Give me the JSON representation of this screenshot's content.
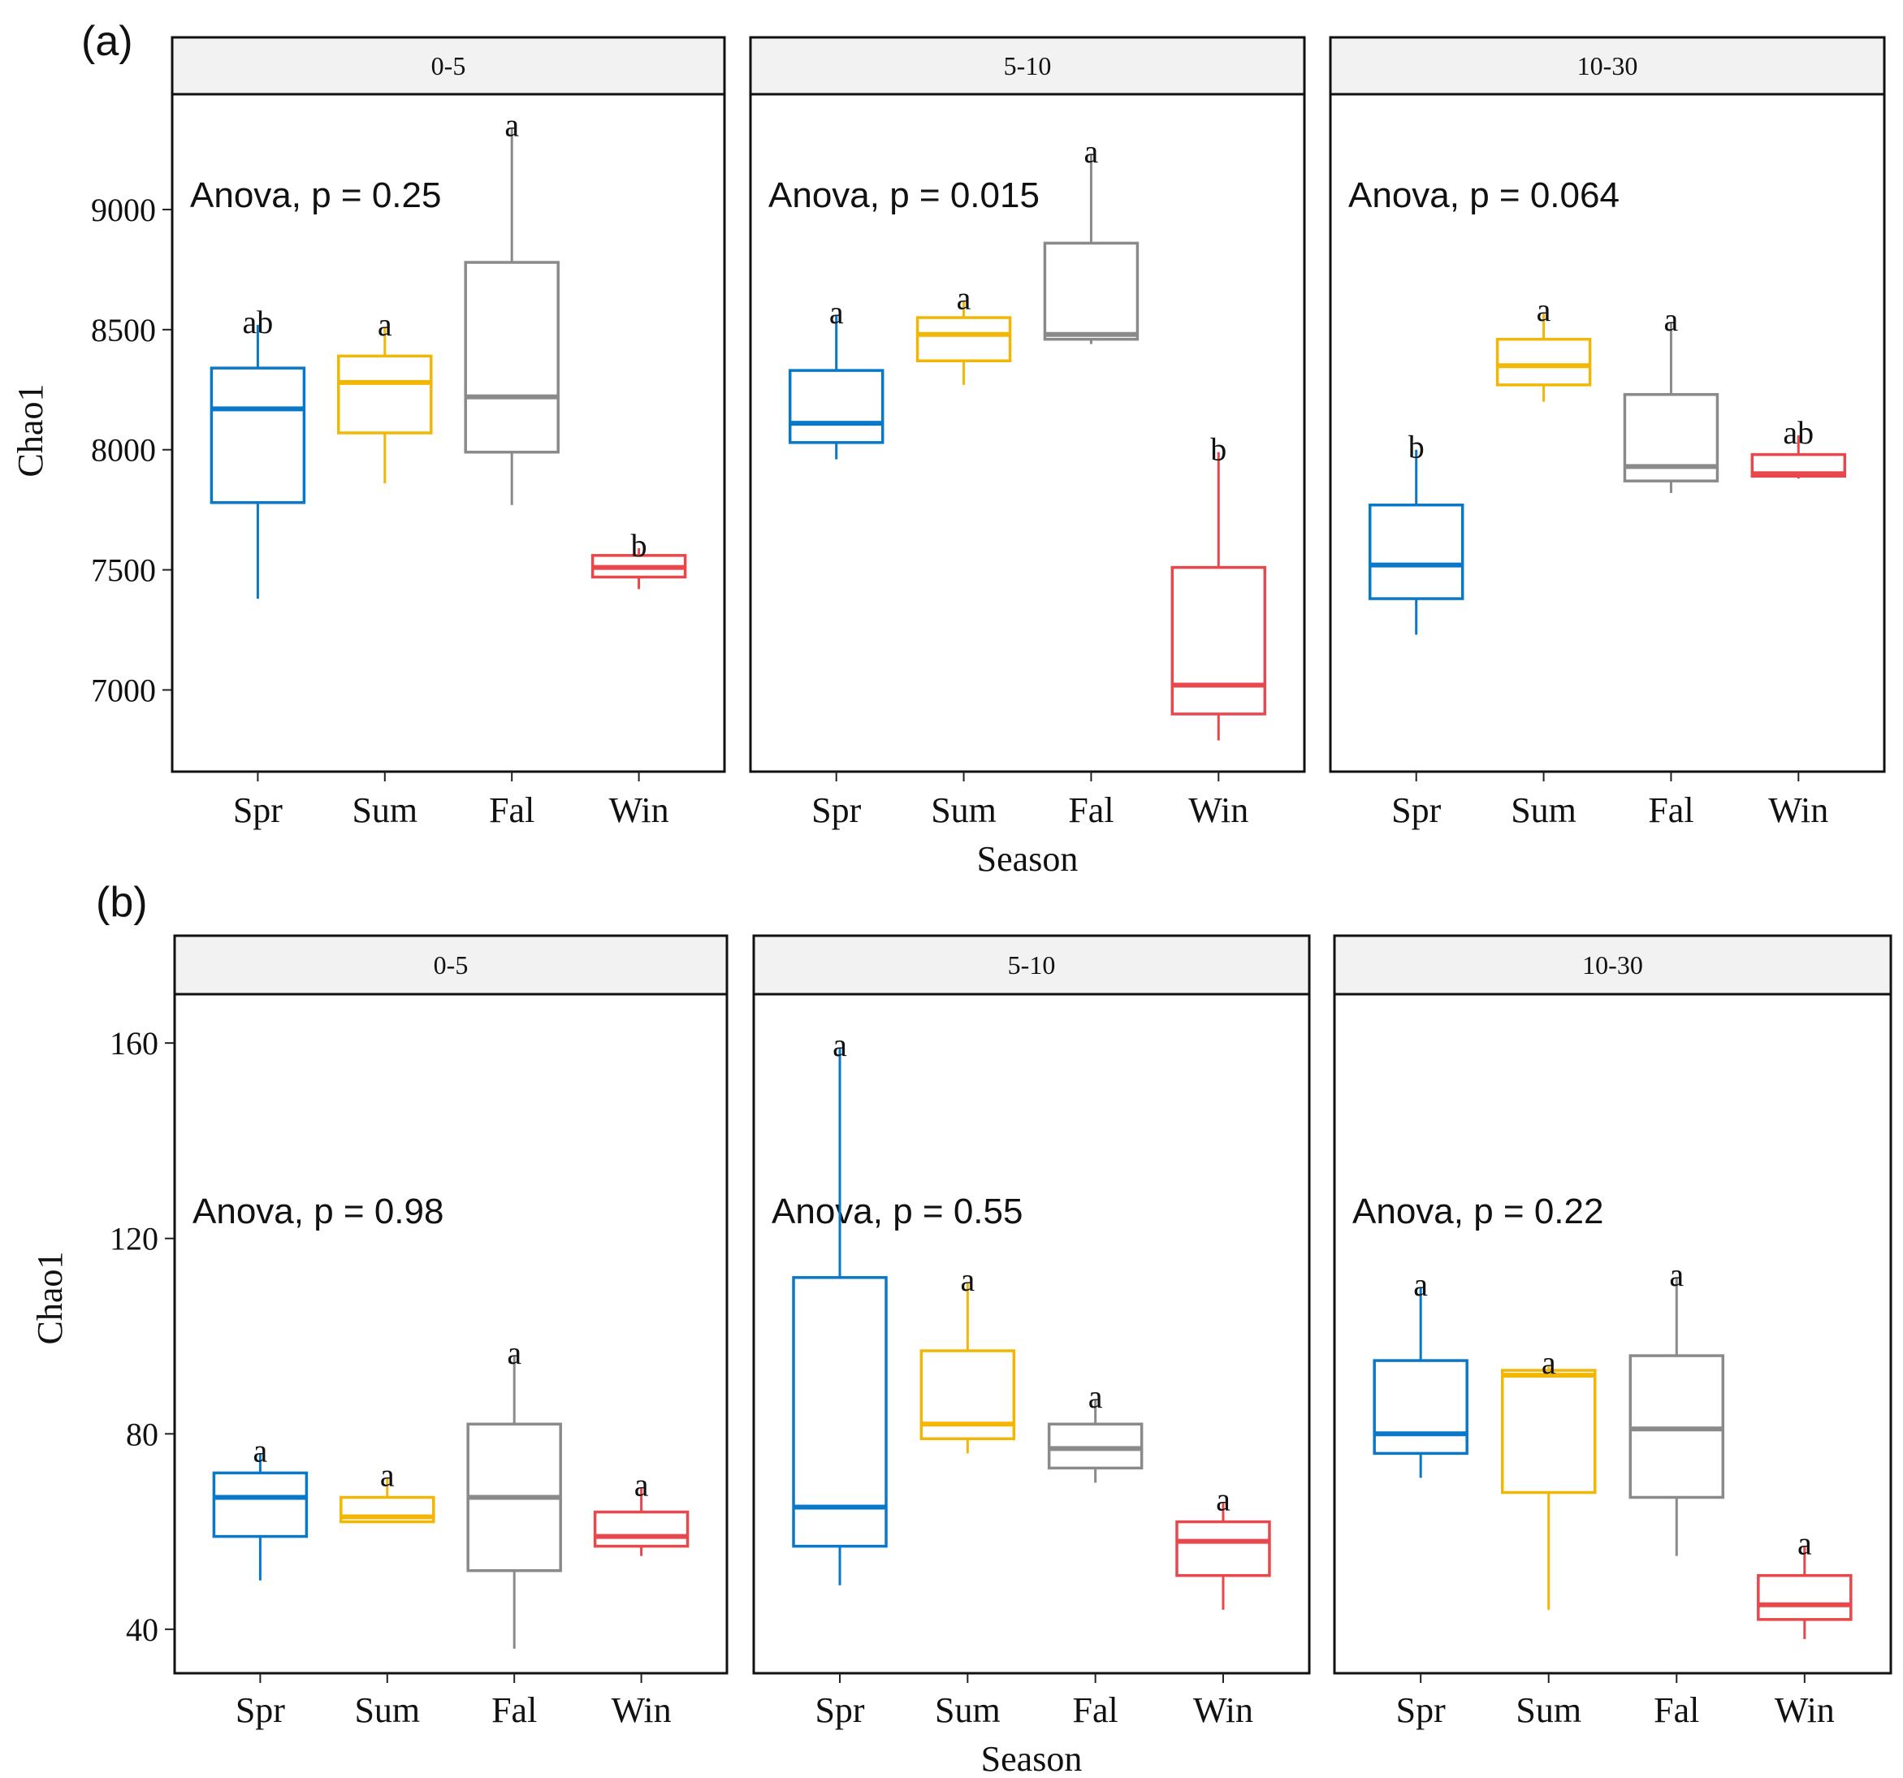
{
  "chart_data": [
    {
      "type": "box",
      "panel_label": "(a)",
      "ylabel": "Chao1",
      "xlabel": "Season",
      "yticks": [
        7000,
        7500,
        8000,
        8500,
        9000
      ],
      "ylim": [
        6660,
        9480
      ],
      "categories": [
        "Spr",
        "Sum",
        "Fal",
        "Win"
      ],
      "colors": {
        "Spr": "#0a78c8",
        "Sum": "#f2b705",
        "Fal": "#8a8a8a",
        "Win": "#e8474b"
      },
      "facets": [
        {
          "strip": "0-5",
          "anova": "Anova, p = 0.25",
          "boxes": [
            {
              "category": "Spr",
              "min": 7380,
              "q1": 7780,
              "median": 8170,
              "q3": 8340,
              "max": 8520,
              "letter": "ab"
            },
            {
              "category": "Sum",
              "min": 7860,
              "q1": 8070,
              "median": 8280,
              "q3": 8390,
              "max": 8510,
              "letter": "a"
            },
            {
              "category": "Fal",
              "min": 7770,
              "q1": 7990,
              "median": 8220,
              "q3": 8780,
              "max": 9340,
              "letter": "a"
            },
            {
              "category": "Win",
              "min": 7420,
              "q1": 7470,
              "median": 7510,
              "q3": 7560,
              "max": 7590,
              "letter": "b"
            }
          ]
        },
        {
          "strip": "5-10",
          "anova": "Anova, p = 0.015",
          "boxes": [
            {
              "category": "Spr",
              "min": 7960,
              "q1": 8030,
              "median": 8110,
              "q3": 8330,
              "max": 8560,
              "letter": "a"
            },
            {
              "category": "Sum",
              "min": 8270,
              "q1": 8370,
              "median": 8480,
              "q3": 8550,
              "max": 8620,
              "letter": "a"
            },
            {
              "category": "Fal",
              "min": 8440,
              "q1": 8460,
              "median": 8480,
              "q3": 8860,
              "max": 9230,
              "letter": "a"
            },
            {
              "category": "Win",
              "min": 6790,
              "q1": 6900,
              "median": 7020,
              "q3": 7510,
              "max": 7990,
              "letter": "b"
            }
          ]
        },
        {
          "strip": "10-30",
          "anova": "Anova, p = 0.064",
          "boxes": [
            {
              "category": "Spr",
              "min": 7230,
              "q1": 7380,
              "median": 7520,
              "q3": 7770,
              "max": 8000,
              "letter": "b"
            },
            {
              "category": "Sum",
              "min": 8200,
              "q1": 8270,
              "median": 8350,
              "q3": 8460,
              "max": 8570,
              "letter": "a"
            },
            {
              "category": "Fal",
              "min": 7820,
              "q1": 7870,
              "median": 7930,
              "q3": 8230,
              "max": 8530,
              "letter": "a"
            },
            {
              "category": "Win",
              "min": 7880,
              "q1": 7890,
              "median": 7900,
              "q3": 7980,
              "max": 8060,
              "letter": "ab"
            }
          ]
        }
      ]
    },
    {
      "type": "box",
      "panel_label": "(b)",
      "ylabel": "Chao1",
      "xlabel": "Season",
      "yticks": [
        40,
        80,
        120,
        160
      ],
      "ylim": [
        31,
        170
      ],
      "categories": [
        "Spr",
        "Sum",
        "Fal",
        "Win"
      ],
      "colors": {
        "Spr": "#0a78c8",
        "Sum": "#f2b705",
        "Fal": "#8a8a8a",
        "Win": "#e8474b"
      },
      "facets": [
        {
          "strip": "0-5",
          "anova": "Anova, p = 0.98",
          "boxes": [
            {
              "category": "Spr",
              "min": 50,
              "q1": 59,
              "median": 67,
              "q3": 72,
              "max": 76,
              "letter": "a"
            },
            {
              "category": "Sum",
              "min": 62,
              "q1": 62,
              "median": 63,
              "q3": 67,
              "max": 71,
              "letter": "a"
            },
            {
              "category": "Fal",
              "min": 36,
              "q1": 52,
              "median": 67,
              "q3": 82,
              "max": 96,
              "letter": "a"
            },
            {
              "category": "Win",
              "min": 55,
              "q1": 57,
              "median": 59,
              "q3": 64,
              "max": 69,
              "letter": "a"
            }
          ]
        },
        {
          "strip": "5-10",
          "anova": "Anova, p = 0.55",
          "boxes": [
            {
              "category": "Spr",
              "min": 49,
              "q1": 57,
              "median": 65,
              "q3": 112,
              "max": 159,
              "letter": "a"
            },
            {
              "category": "Sum",
              "min": 76,
              "q1": 79,
              "median": 82,
              "q3": 97,
              "max": 111,
              "letter": "a"
            },
            {
              "category": "Fal",
              "min": 70,
              "q1": 73,
              "median": 77,
              "q3": 82,
              "max": 87,
              "letter": "a"
            },
            {
              "category": "Win",
              "min": 44,
              "q1": 51,
              "median": 58,
              "q3": 62,
              "max": 66,
              "letter": "a"
            }
          ]
        },
        {
          "strip": "10-30",
          "anova": "Anova, p = 0.22",
          "boxes": [
            {
              "category": "Spr",
              "min": 71,
              "q1": 76,
              "median": 80,
              "q3": 95,
              "max": 110,
              "letter": "a"
            },
            {
              "category": "Sum",
              "min": 44,
              "q1": 68,
              "median": 92,
              "q3": 93,
              "max": 94,
              "letter": "a"
            },
            {
              "category": "Fal",
              "min": 55,
              "q1": 67,
              "median": 81,
              "q3": 96,
              "max": 112,
              "letter": "a"
            },
            {
              "category": "Win",
              "min": 38,
              "q1": 42,
              "median": 45,
              "q3": 51,
              "max": 57,
              "letter": "a"
            }
          ]
        }
      ]
    }
  ]
}
